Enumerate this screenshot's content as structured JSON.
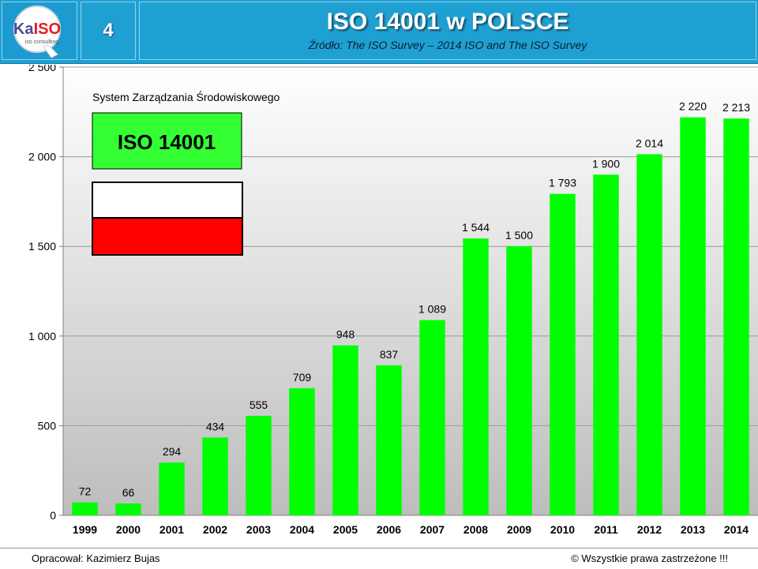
{
  "header": {
    "slide_number": "4",
    "title": "ISO 14001 w POLSCE",
    "subtitle": "Źródło: The ISO Survey – 2014   ISO and The ISO Survey",
    "logo": {
      "text_main": "KaISO",
      "text_sub": "iso consulting",
      "letter": "Q"
    }
  },
  "colors": {
    "header_bg": "#1fa0d2",
    "bar": "#00ff00",
    "flag_white": "#ffffff",
    "flag_red": "#ff0000",
    "badge": "#33ff33"
  },
  "legend": {
    "caption": "System Zarządzania Środowiskowego",
    "badge_text": "ISO 14001"
  },
  "chart_data": {
    "type": "bar",
    "categories": [
      "1999",
      "2000",
      "2001",
      "2002",
      "2003",
      "2004",
      "2005",
      "2006",
      "2007",
      "2008",
      "2009",
      "2010",
      "2011",
      "2012",
      "2013",
      "2014"
    ],
    "values": [
      72,
      66,
      294,
      434,
      555,
      709,
      948,
      837,
      1089,
      1544,
      1500,
      1793,
      1900,
      2014,
      2220,
      2213
    ],
    "value_labels": [
      "72",
      "66",
      "294",
      "434",
      "555",
      "709",
      "948",
      "837",
      "1 089",
      "1 544",
      "1 500",
      "1 793",
      "1 900",
      "2 014",
      "2 220",
      "2 213"
    ],
    "ylim": [
      0,
      2500
    ],
    "yticks": [
      0,
      500,
      1000,
      1500,
      2000,
      2500
    ],
    "ytick_labels": [
      "0",
      "500",
      "1 000",
      "1 500",
      "2 000",
      "2 500"
    ],
    "grid": true,
    "title": "",
    "xlabel": "",
    "ylabel": ""
  },
  "footer": {
    "author": "Opracował: Kazimierz Bujas",
    "copyright": "©  Wszystkie prawa zastrzeżone !!!"
  }
}
